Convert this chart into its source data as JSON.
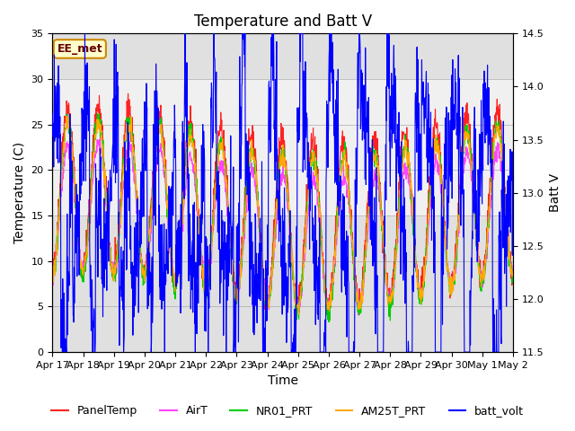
{
  "title": "Temperature and Batt V",
  "xlabel": "Time",
  "ylabel_left": "Temperature (C)",
  "ylabel_right": "Batt V",
  "ylim_left": [
    0,
    35
  ],
  "ylim_right": [
    11.5,
    14.5
  ],
  "annotation": "EE_met",
  "shade_band": [
    15,
    30
  ],
  "background_color": "#ffffff",
  "plot_bg_color": "#e0e0e0",
  "white_band_color": "#f0f0f0",
  "legend_entries": [
    "PanelTemp",
    "AirT",
    "NR01_PRT",
    "AM25T_PRT",
    "batt_volt"
  ],
  "line_colors": [
    "#ff2222",
    "#ff44ff",
    "#00cc00",
    "#ffaa00",
    "#0000ff"
  ],
  "x_tick_labels": [
    "Apr 17",
    "Apr 18",
    "Apr 19",
    "Apr 20",
    "Apr 21",
    "Apr 22",
    "Apr 23",
    "Apr 24",
    "Apr 25",
    "Apr 26",
    "Apr 27",
    "Apr 28",
    "Apr 29",
    "Apr 30",
    "May 1",
    "May 2"
  ],
  "x_tick_positions": [
    0,
    1,
    2,
    3,
    4,
    5,
    6,
    7,
    8,
    9,
    10,
    11,
    12,
    13,
    14,
    15
  ],
  "title_fontsize": 12,
  "axis_label_fontsize": 10,
  "tick_fontsize": 8,
  "legend_fontsize": 9
}
